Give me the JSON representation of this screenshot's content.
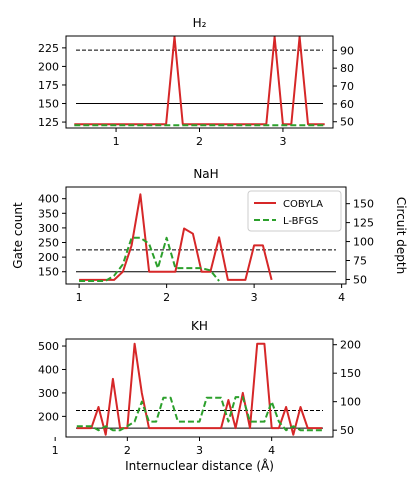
{
  "chart_data": [
    {
      "type": "line",
      "title": "H₂",
      "x_ticks": [
        "1",
        "2",
        "3"
      ],
      "xlim": [
        0.4,
        3.6
      ],
      "left_axis": {
        "label": "",
        "ylim": [
          117,
          241
        ],
        "ticks": [
          "125",
          "150",
          "175",
          "200",
          "225"
        ]
      },
      "right_axis": {
        "label": "",
        "ylim": [
          46.5,
          98
        ],
        "ticks": [
          "50",
          "60",
          "70",
          "80",
          "90"
        ]
      },
      "reference_lines": [
        {
          "style": "solid",
          "color": "#000000",
          "axis": "left",
          "y": 150
        },
        {
          "style": "dashed",
          "color": "#000000",
          "axis": "left",
          "y": 222
        }
      ],
      "series": [
        {
          "name": "COBYLA",
          "axis": "left",
          "color": "#d62728",
          "style": "solid",
          "x": [
            0.5,
            1.6,
            1.7,
            1.8,
            2.8,
            2.9,
            3.0,
            3.1,
            3.2,
            3.3,
            3.5
          ],
          "y": [
            122,
            122,
            240,
            122,
            122,
            240,
            122,
            122,
            240,
            122,
            122
          ]
        },
        {
          "name": "L-BFGS",
          "axis": "right",
          "color": "#2ca02c",
          "style": "dashed",
          "x": [
            0.5,
            3.5
          ],
          "y": [
            48,
            48
          ]
        }
      ]
    },
    {
      "type": "line",
      "title": "NaH",
      "x_ticks": [
        "1",
        "2",
        "3",
        "4"
      ],
      "xlim": [
        0.85,
        4.05
      ],
      "left_axis": {
        "label": "Gate count",
        "ylim": [
          108,
          440
        ],
        "ticks": [
          "150",
          "200",
          "250",
          "300",
          "350",
          "400"
        ]
      },
      "right_axis": {
        "label": "Circuit depth",
        "ylim": [
          44,
          172
        ],
        "ticks": [
          "50",
          "75",
          "100",
          "125",
          "150"
        ]
      },
      "legend": {
        "position": "top-right",
        "entries": [
          "COBYLA",
          "L-BFGS"
        ]
      },
      "reference_lines": [
        {
          "style": "solid",
          "color": "#000000",
          "axis": "left",
          "y": 150
        },
        {
          "style": "dashed",
          "color": "#000000",
          "axis": "left",
          "y": 225
        }
      ],
      "series": [
        {
          "name": "COBYLA",
          "axis": "left",
          "color": "#d62728",
          "style": "solid",
          "x": [
            1.0,
            1.4,
            1.5,
            1.6,
            1.7,
            1.8,
            1.9,
            2.0,
            2.1,
            2.2,
            2.3,
            2.4,
            2.5,
            2.6,
            2.7,
            2.9,
            3.0,
            3.1,
            3.2
          ],
          "y": [
            122,
            122,
            150,
            240,
            415,
            150,
            150,
            150,
            150,
            298,
            280,
            150,
            150,
            268,
            122,
            122,
            240,
            240,
            122
          ]
        },
        {
          "name": "L-BFGS",
          "axis": "right",
          "color": "#2ca02c",
          "style": "dashed",
          "x": [
            1.0,
            1.3,
            1.4,
            1.5,
            1.6,
            1.7,
            1.8,
            1.9,
            2.0,
            2.1,
            2.3,
            2.4,
            2.5,
            2.6
          ],
          "y": [
            48,
            48,
            55,
            70,
            105,
            105,
            97,
            65,
            105,
            65,
            65,
            65,
            62,
            48
          ]
        }
      ]
    },
    {
      "type": "line",
      "title": "KH",
      "xlabel": "Internuclear distance (Å)",
      "x_ticks": [
        "1",
        "2",
        "3",
        "4"
      ],
      "xlim": [
        1.15,
        4.85
      ],
      "left_axis": {
        "label": "",
        "ylim": [
          112,
          530
        ],
        "ticks": [
          "200",
          "300",
          "400",
          "500"
        ]
      },
      "right_axis": {
        "label": "",
        "ylim": [
          38,
          210
        ],
        "ticks": [
          "50",
          "100",
          "150",
          "200"
        ]
      },
      "reference_lines": [
        {
          "style": "solid",
          "color": "#000000",
          "axis": "left",
          "y": 150
        },
        {
          "style": "dashed",
          "color": "#000000",
          "axis": "left",
          "y": 225
        }
      ],
      "series": [
        {
          "name": "COBYLA",
          "axis": "left",
          "color": "#d62728",
          "style": "solid",
          "x": [
            1.3,
            1.5,
            1.6,
            1.7,
            1.8,
            1.9,
            2.0,
            2.1,
            2.2,
            2.3,
            2.4,
            2.5,
            2.6,
            2.7,
            2.8,
            2.9,
            3.0,
            3.1,
            3.2,
            3.3,
            3.4,
            3.5,
            3.6,
            3.7,
            3.8,
            3.9,
            4.0,
            4.1,
            4.2,
            4.3,
            4.4,
            4.5,
            4.6,
            4.7
          ],
          "y": [
            150,
            150,
            240,
            122,
            360,
            150,
            150,
            510,
            300,
            150,
            150,
            150,
            150,
            150,
            150,
            150,
            150,
            150,
            150,
            150,
            270,
            150,
            300,
            150,
            510,
            510,
            150,
            150,
            240,
            122,
            240,
            150,
            150,
            150
          ]
        },
        {
          "name": "L-BFGS",
          "axis": "right",
          "color": "#2ca02c",
          "style": "dashed",
          "x": [
            1.3,
            1.5,
            1.6,
            1.7,
            1.8,
            1.9,
            2.0,
            2.1,
            2.2,
            2.3,
            2.4,
            2.5,
            2.6,
            2.7,
            2.8,
            2.9,
            3.0,
            3.1,
            3.2,
            3.3,
            3.4,
            3.5,
            3.6,
            3.7,
            3.8,
            3.9,
            4.0,
            4.1,
            4.2,
            4.3,
            4.4,
            4.5,
            4.6,
            4.7
          ],
          "y": [
            57,
            57,
            50,
            57,
            50,
            50,
            57,
            65,
            100,
            65,
            65,
            107,
            107,
            65,
            65,
            65,
            65,
            107,
            107,
            107,
            65,
            108,
            108,
            65,
            65,
            65,
            100,
            65,
            50,
            57,
            50,
            50,
            50,
            50
          ]
        }
      ]
    }
  ]
}
